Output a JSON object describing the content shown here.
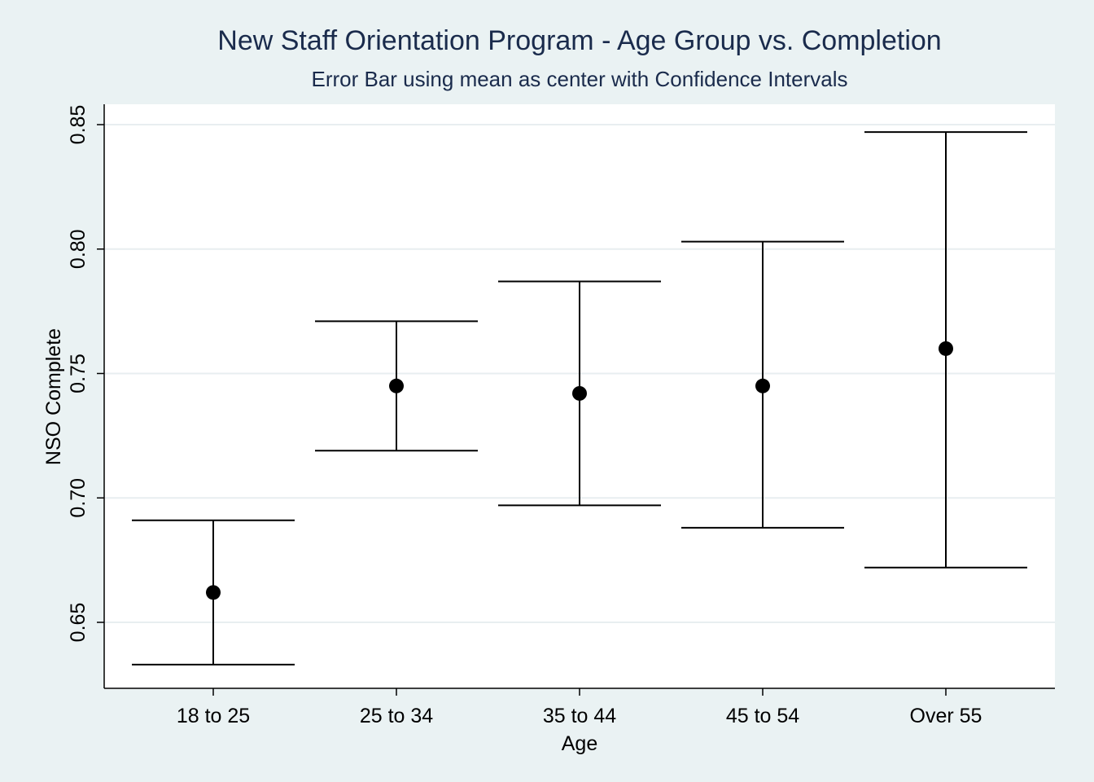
{
  "chart_data": {
    "type": "errorbar",
    "title": "New Staff Orientation Program - Age Group vs. Completion",
    "subtitle": "Error Bar using mean as center with Confidence Intervals",
    "xlabel": "Age",
    "ylabel": "NSO Complete",
    "categories": [
      "18 to 25",
      "25 to 34",
      "35 to 44",
      "45 to 54",
      "Over 55"
    ],
    "means": [
      0.662,
      0.745,
      0.742,
      0.745,
      0.76
    ],
    "lower": [
      0.633,
      0.719,
      0.697,
      0.688,
      0.672
    ],
    "upper": [
      0.691,
      0.771,
      0.787,
      0.803,
      0.847
    ],
    "ylim": [
      0.625,
      0.858
    ],
    "yticks": [
      0.65,
      0.7,
      0.75,
      0.8,
      0.85
    ],
    "ytick_labels": [
      "0.65",
      "0.70",
      "0.75",
      "0.80",
      "0.85"
    ],
    "grid": true,
    "colors": {
      "background": "#eaf2f3",
      "plot_background": "#ffffff",
      "grid": "#e8eef0",
      "marker": "#000000",
      "title": "#1a2b4c"
    }
  }
}
